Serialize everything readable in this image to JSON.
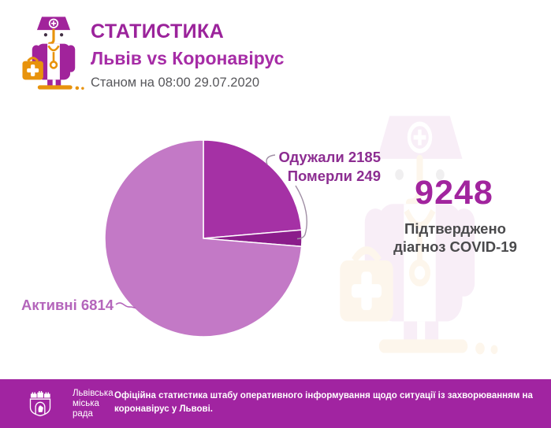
{
  "header": {
    "title": "СТАТИСТИКА",
    "subtitle": "Львів vs Коронавірус",
    "as_of": "Станом на 08:00 29.07.2020",
    "icon": "doctor-with-medical-bag-icon"
  },
  "chart_data": {
    "type": "pie",
    "title": "Львів vs Коронавірус",
    "start_angle_deg": 0,
    "direction": "clockwise",
    "legend_position": "callout-labels",
    "total": 9248,
    "slices": [
      {
        "key": "recovered",
        "label": "Одужали",
        "value": 2185,
        "color": "#a531a5"
      },
      {
        "key": "died",
        "label": "Померли",
        "value": 249,
        "color": "#8b1d8b"
      },
      {
        "key": "active",
        "label": "Активні",
        "value": 6814,
        "color": "#c379c6"
      }
    ]
  },
  "annotations": {
    "recovered": "Одужали 2185",
    "died": "Померли 249",
    "active": "Активні 6814"
  },
  "right_panel": {
    "total_value": "9248",
    "caption": "Підтверджено\nдіагноз COVID-19"
  },
  "footer": {
    "logo_icon": "lviv-city-council-crest",
    "logo_text": "Львівська\nміська\nрада",
    "note": "Офіційна статистика штабу оперативного інформування щодо ситуації із захворюванням на\nкоронавірус у Львові.",
    "background": "#a124a1"
  },
  "colors": {
    "title_magenta": "#9b239b",
    "subtitle_magenta": "#a62ca6",
    "date_gray": "#57575b",
    "annotation_dark": "#8c2d91",
    "annotation_light": "#b465bb",
    "caption_gray": "#4a4a4c",
    "accent_orange": "#e8930c",
    "footer_magenta": "#a124a1"
  }
}
